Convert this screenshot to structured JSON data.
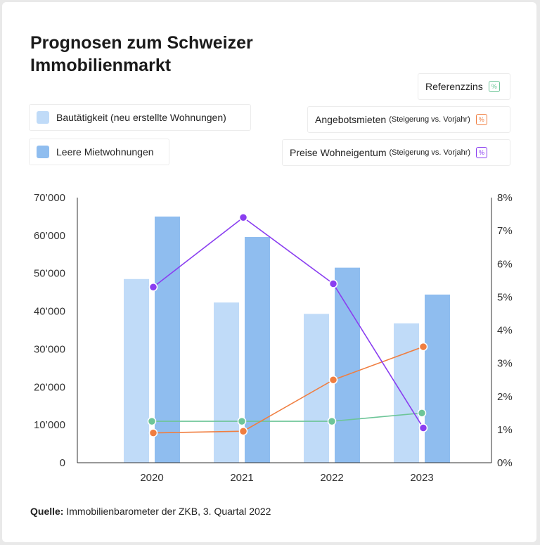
{
  "title_line1": "Prognosen zum Schweizer",
  "title_line2": "Immobilienmarkt",
  "legend": {
    "bautaetigkeit": "Bautätigkeit (neu erstellte Wohnungen)",
    "leere": "Leere Mietwohnungen",
    "referenzzins": "Referenzzins",
    "angebotsmieten": "Angebotsmieten",
    "angebotsmieten_note": "(Steigerung vs. Vorjahr)",
    "preise": "Preise Wohneigentum",
    "preise_note": "(Steigerung vs. Vorjahr)",
    "pct_symbol": "%"
  },
  "source": {
    "label": "Quelle:",
    "text": "Immobilienbarometer der ZKB, 3. Quartal 2022"
  },
  "colors": {
    "bar_light": "#c0dbf8",
    "bar_dark": "#8fbdef",
    "purple": "#8a3ef0",
    "orange": "#f07e40",
    "green": "#6dc598"
  },
  "chart_data": {
    "type": "bar",
    "categories": [
      "2020",
      "2021",
      "2022",
      "2023"
    ],
    "series": [
      {
        "name": "Bautätigkeit (neu erstellte Wohnungen)",
        "axis": "left",
        "kind": "bar",
        "values": [
          48500,
          42300,
          39300,
          36800
        ]
      },
      {
        "name": "Leere Mietwohnungen",
        "axis": "left",
        "kind": "bar",
        "values": [
          65000,
          59600,
          51500,
          44400
        ]
      },
      {
        "name": "Referenzzins",
        "axis": "right",
        "kind": "line",
        "values": [
          1.25,
          1.25,
          1.25,
          1.5
        ]
      },
      {
        "name": "Angebotsmieten (Steigerung vs. Vorjahr)",
        "axis": "right",
        "kind": "line",
        "values": [
          0.9,
          0.95,
          2.5,
          3.5
        ]
      },
      {
        "name": "Preise Wohneigentum (Steigerung vs. Vorjahr)",
        "axis": "right",
        "kind": "line",
        "values": [
          5.3,
          7.4,
          5.4,
          1.05
        ]
      }
    ],
    "ylim_left": [
      0,
      70000
    ],
    "ylim_right": [
      0,
      8
    ],
    "left_ticks": [
      "0",
      "10’000",
      "20’000",
      "30’000",
      "40’000",
      "50’000",
      "60’000",
      "70’000"
    ],
    "right_ticks": [
      "0%",
      "1%",
      "2%",
      "3%",
      "4%",
      "5%",
      "6%",
      "7%",
      "8%"
    ],
    "grid": false
  }
}
